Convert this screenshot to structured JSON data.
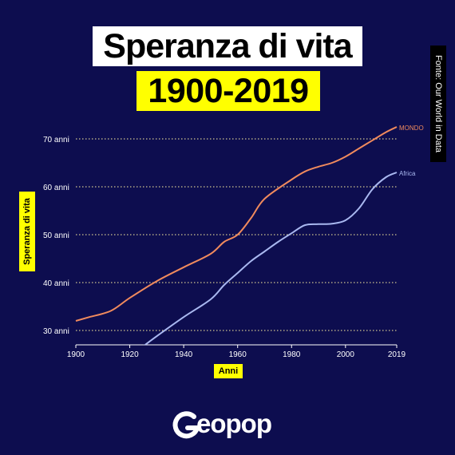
{
  "title_line1": "Speranza di vita",
  "title_line2": "1900-2019",
  "source": "Fonte: Our World in Data",
  "brand": "eopop",
  "colors": {
    "background": "#0d0d4f",
    "mondo": "#f08a5d",
    "africa": "#a9b8f0",
    "highlight": "#ffff00",
    "grid": "#fff3a0"
  },
  "chart_data": {
    "type": "line",
    "xlabel": "Anni",
    "ylabel": "Speranza di vita",
    "xlim": [
      1900,
      2019
    ],
    "ylim": [
      27,
      74
    ],
    "x_ticks": [
      1900,
      1920,
      1940,
      1960,
      1980,
      2000,
      2019
    ],
    "y_ticks": [
      30,
      40,
      50,
      60,
      70
    ],
    "y_tick_labels": [
      "30 anni",
      "40 anni",
      "50 anni",
      "60 anni",
      "70 anni"
    ],
    "grid": "horizontal dotted",
    "series": [
      {
        "name": "MONDO",
        "color": "#f08a5d",
        "x": [
          1900,
          1905,
          1913,
          1920,
          1930,
          1940,
          1950,
          1955,
          1960,
          1965,
          1970,
          1980,
          1985,
          1990,
          1995,
          2000,
          2005,
          2010,
          2015,
          2019
        ],
        "y": [
          32.0,
          32.8,
          34.1,
          36.8,
          40.3,
          43.2,
          46.0,
          48.5,
          50.0,
          53.5,
          57.5,
          61.5,
          63.2,
          64.2,
          65.0,
          66.3,
          68.0,
          69.7,
          71.4,
          72.5
        ]
      },
      {
        "name": "Africa",
        "color": "#a9b8f0",
        "x": [
          1925,
          1930,
          1940,
          1950,
          1955,
          1960,
          1965,
          1970,
          1975,
          1980,
          1985,
          1990,
          1995,
          2000,
          2005,
          2010,
          2015,
          2019
        ],
        "y": [
          26.7,
          28.8,
          32.8,
          36.5,
          39.5,
          42.0,
          44.5,
          46.5,
          48.5,
          50.3,
          52.0,
          52.2,
          52.3,
          53.0,
          55.5,
          59.5,
          62.0,
          63.0
        ]
      }
    ]
  }
}
